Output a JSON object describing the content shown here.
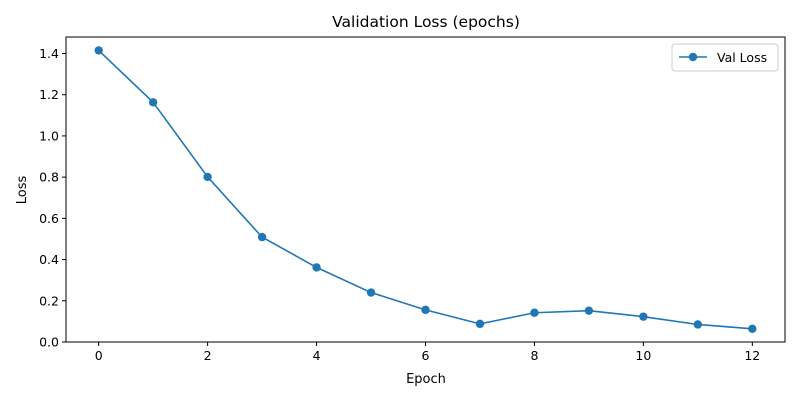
{
  "chart_data": {
    "type": "line",
    "title": "Validation Loss (epochs)",
    "xlabel": "Epoch",
    "ylabel": "Loss",
    "xlim": [
      -0.6,
      12.6
    ],
    "ylim": [
      0.0,
      1.48
    ],
    "xticks": [
      0,
      2,
      4,
      6,
      8,
      10,
      12
    ],
    "xtick_labels": [
      "0",
      "2",
      "4",
      "6",
      "8",
      "10",
      "12"
    ],
    "yticks": [
      0.0,
      0.2,
      0.4,
      0.6,
      0.8,
      1.0,
      1.2,
      1.4
    ],
    "ytick_labels": [
      "0.0",
      "0.2",
      "0.4",
      "0.6",
      "0.8",
      "1.0",
      "1.2",
      "1.4"
    ],
    "grid": false,
    "legend_position": "top-right",
    "series": [
      {
        "name": "Val Loss",
        "color": "#1f77b4",
        "marker": "circle",
        "x": [
          0,
          1,
          2,
          3,
          4,
          5,
          6,
          7,
          8,
          9,
          10,
          11,
          12
        ],
        "y": [
          1.415,
          1.163,
          0.801,
          0.509,
          0.362,
          0.24,
          0.156,
          0.088,
          0.142,
          0.152,
          0.123,
          0.085,
          0.064
        ]
      }
    ]
  }
}
